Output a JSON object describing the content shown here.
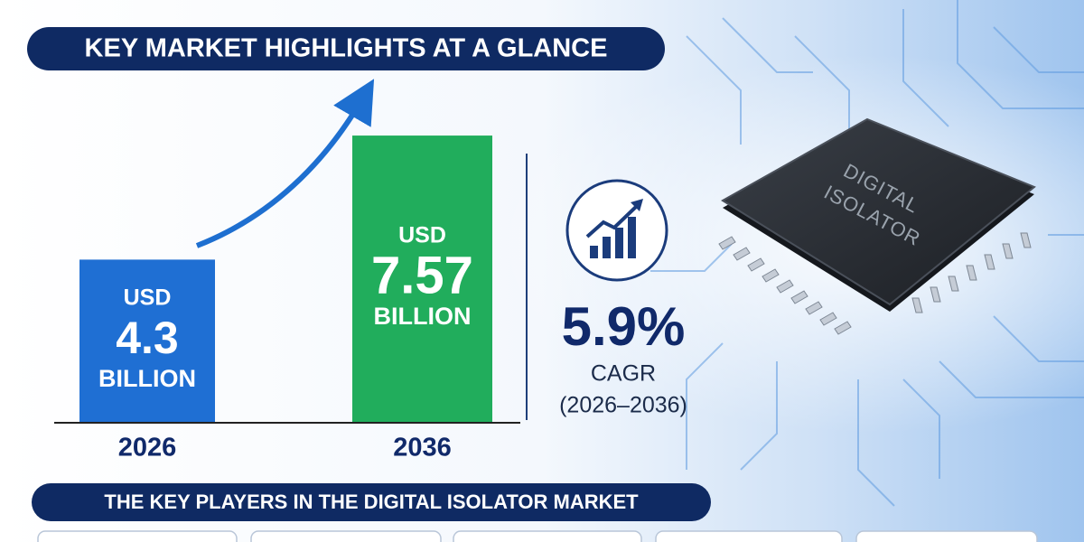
{
  "header": {
    "title": "KEY MARKET HIGHLIGHTS AT A GLANCE"
  },
  "chart_data": {
    "type": "bar",
    "categories": [
      "2026",
      "2036"
    ],
    "values": [
      4.3,
      7.57
    ],
    "colors": [
      "#1f6fd3",
      "#21ad5c"
    ],
    "currency": "USD",
    "unit": "BILLION"
  },
  "cagr": {
    "value": "5.9%",
    "label": "CAGR",
    "period": "(2026–2036)"
  },
  "illustration": {
    "chip_label": [
      "DIGITAL",
      "ISOLATOR"
    ]
  },
  "players": {
    "title": "THE KEY PLAYERS IN THE DIGITAL ISOLATOR MARKET"
  }
}
